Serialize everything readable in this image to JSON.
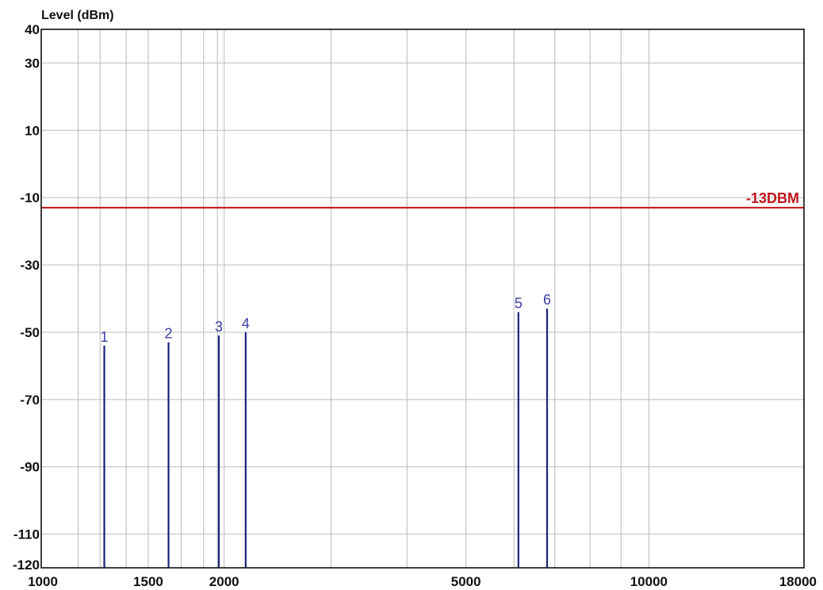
{
  "chart_data": {
    "type": "bar",
    "title": "",
    "ylabel": "Level (dBm)",
    "xlabel": "",
    "x_scale": "log",
    "xlim": [
      1000,
      18000
    ],
    "ylim": [
      -120,
      40
    ],
    "grid": true,
    "x_ticks": [
      {
        "value": 1000,
        "label": "1000"
      },
      {
        "value": 1500,
        "label": "1500"
      },
      {
        "value": 2000,
        "label": "2000"
      },
      {
        "value": 5000,
        "label": "5000"
      },
      {
        "value": 10000,
        "label": "10000"
      },
      {
        "value": 18000,
        "label": "18000"
      }
    ],
    "x_grid": [
      1000,
      1150,
      1250,
      1380,
      1500,
      1700,
      1850,
      1950,
      2000,
      3000,
      4000,
      5000,
      6000,
      7000,
      8000,
      9000,
      10000,
      18000
    ],
    "y_ticks": [
      {
        "value": 40,
        "label": "40"
      },
      {
        "value": 30,
        "label": "30"
      },
      {
        "value": 10,
        "label": "10"
      },
      {
        "value": -10,
        "label": "-10"
      },
      {
        "value": -30,
        "label": "-30"
      },
      {
        "value": -50,
        "label": "-50"
      },
      {
        "value": -70,
        "label": "-70"
      },
      {
        "value": -90,
        "label": "-90"
      },
      {
        "value": -110,
        "label": "-110"
      },
      {
        "value": -120,
        "label": "-120"
      }
    ],
    "y_grid": [
      40,
      30,
      10,
      -10,
      -30,
      -50,
      -70,
      -90,
      -110
    ],
    "limit_line": {
      "value": -13,
      "label": "-13DBM",
      "color": "#c0151a"
    },
    "series_color": "#1a237e",
    "marker_color": "#3b3fa8",
    "markers": [
      {
        "label": "1",
        "x": 1270,
        "y": -54
      },
      {
        "label": "2",
        "x": 1620,
        "y": -53
      },
      {
        "label": "3",
        "x": 1960,
        "y": -51
      },
      {
        "label": "4",
        "x": 2170,
        "y": -50
      },
      {
        "label": "5",
        "x": 6100,
        "y": -44
      },
      {
        "label": "6",
        "x": 6800,
        "y": -43
      }
    ]
  }
}
